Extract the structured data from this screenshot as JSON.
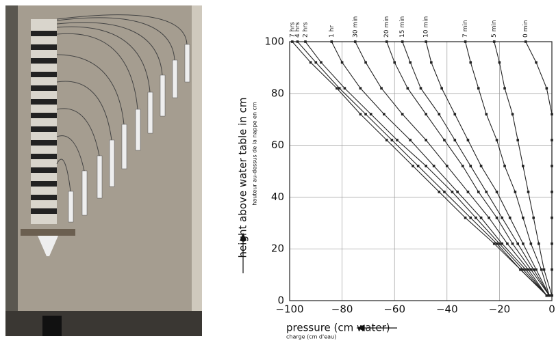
{
  "chart_data": {
    "type": "line",
    "xlabel": "pressure (cm water)",
    "xlabel_fr": "charge (cm d'eau)",
    "ylabel": "height above water table in cm",
    "ylabel_fr": "hauteur au-dessus de la nappe en cm",
    "xlim": [
      -100,
      0
    ],
    "ylim": [
      0,
      100
    ],
    "xticks": [
      {
        "value": -100,
        "label": "−100"
      },
      {
        "value": -80,
        "label": "−80"
      },
      {
        "value": -60,
        "label": "−60"
      },
      {
        "value": -40,
        "label": "−40"
      },
      {
        "value": -20,
        "label": "−20"
      },
      0
    ],
    "yticks": [
      0,
      20,
      40,
      60,
      80,
      100
    ],
    "grid": true,
    "color": "#222",
    "series": [
      {
        "name": "7 hrs",
        "x": [
          -2,
          -12,
          -22,
          -33,
          -43,
          -53,
          -63,
          -73,
          -82,
          -92,
          -99
        ],
        "values": [
          2,
          12,
          22,
          32,
          42,
          52,
          62,
          72,
          82,
          92,
          100
        ]
      },
      {
        "name": "4 hrs",
        "x": [
          -2,
          -12,
          -21,
          -31,
          -41,
          -51,
          -61,
          -71,
          -81,
          -90,
          -97
        ],
        "values": [
          2,
          12,
          22,
          32,
          42,
          52,
          62,
          72,
          82,
          92,
          100
        ]
      },
      {
        "name": "2 hrs",
        "x": [
          -2,
          -11,
          -20,
          -29,
          -38,
          -48,
          -59,
          -69,
          -79,
          -88,
          -94
        ],
        "values": [
          2,
          12,
          22,
          32,
          42,
          52,
          62,
          72,
          82,
          92,
          100
        ]
      },
      {
        "name": "1 hr",
        "x": [
          -2,
          -10,
          -19,
          -27,
          -36,
          -45,
          -54,
          -64,
          -73,
          -80,
          -84
        ],
        "values": [
          2,
          12,
          22,
          32,
          42,
          52,
          62,
          72,
          82,
          92,
          100
        ]
      },
      {
        "name": "30 min",
        "x": [
          -2,
          -9,
          -17,
          -24,
          -32,
          -40,
          -48,
          -57,
          -65,
          -71,
          -75
        ],
        "values": [
          2,
          12,
          22,
          32,
          42,
          52,
          62,
          72,
          82,
          92,
          100
        ]
      },
      {
        "name": "20 min",
        "x": [
          -1,
          -8,
          -15,
          -21,
          -28,
          -34,
          -41,
          -48,
          -55,
          -60,
          -63
        ],
        "values": [
          2,
          12,
          22,
          32,
          42,
          52,
          62,
          72,
          82,
          92,
          100
        ]
      },
      {
        "name": "15 min",
        "x": [
          -1,
          -7,
          -13,
          -19,
          -25,
          -31,
          -37,
          -43,
          -50,
          -54,
          -57
        ],
        "values": [
          2,
          12,
          22,
          32,
          42,
          52,
          62,
          72,
          82,
          92,
          100
        ]
      },
      {
        "name": "10 min",
        "x": [
          -1,
          -6,
          -11,
          -16,
          -21,
          -27,
          -32,
          -37,
          -42,
          -46,
          -48
        ],
        "values": [
          2,
          12,
          22,
          32,
          42,
          52,
          62,
          72,
          82,
          92,
          100
        ]
      },
      {
        "name": "7 min",
        "x": [
          -1,
          -4,
          -8,
          -11,
          -14,
          -18,
          -21,
          -25,
          -28,
          -31,
          -33
        ],
        "values": [
          2,
          12,
          22,
          32,
          42,
          52,
          62,
          72,
          82,
          92,
          100
        ]
      },
      {
        "name": "5 min",
        "x": [
          0,
          -3,
          -5,
          -7,
          -9,
          -11,
          -13,
          -15,
          -18,
          -20,
          -22
        ],
        "values": [
          2,
          12,
          22,
          32,
          42,
          52,
          62,
          72,
          82,
          92,
          100
        ]
      },
      {
        "name": "0 min",
        "x": [
          0,
          0,
          0,
          0,
          0,
          0,
          0,
          0,
          -2,
          -6,
          -10
        ],
        "values": [
          2,
          12,
          22,
          32,
          42,
          52,
          62,
          72,
          82,
          92,
          100
        ]
      }
    ]
  }
}
